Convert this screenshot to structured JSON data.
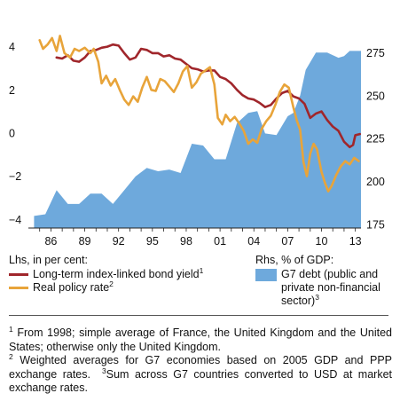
{
  "chart_data": {
    "type": "line",
    "x_ticks": [
      "86",
      "89",
      "92",
      "95",
      "98",
      "01",
      "04",
      "07",
      "10",
      "13"
    ],
    "x_range": [
      1984.5,
      2014.0
    ],
    "left_axis": {
      "ticks": [
        "4",
        "2",
        "0",
        "−2",
        "−4"
      ],
      "range": [
        -4.4,
        4.6
      ]
    },
    "right_axis": {
      "ticks": [
        "275",
        "250",
        "225",
        "200",
        "175"
      ],
      "range": [
        173,
        286
      ]
    },
    "legend_left_title": "Lhs, in per cent:",
    "legend_right_title": "Rhs, % of GDP:",
    "series": [
      {
        "name": "Long-term index-linked bond yield",
        "footnote": "1",
        "axis": "left",
        "color": "#a0262b",
        "points": [
          [
            1987.0,
            3.5
          ],
          [
            1987.5,
            3.45
          ],
          [
            1988.0,
            3.6
          ],
          [
            1988.5,
            3.35
          ],
          [
            1989.0,
            3.3
          ],
          [
            1989.5,
            3.5
          ],
          [
            1990.0,
            3.8
          ],
          [
            1990.5,
            3.85
          ],
          [
            1991.0,
            3.95
          ],
          [
            1991.5,
            4.0
          ],
          [
            1992.0,
            4.1
          ],
          [
            1992.5,
            4.05
          ],
          [
            1993.0,
            3.7
          ],
          [
            1993.5,
            3.4
          ],
          [
            1994.0,
            3.5
          ],
          [
            1994.5,
            3.9
          ],
          [
            1995.0,
            3.85
          ],
          [
            1995.5,
            3.7
          ],
          [
            1996.0,
            3.7
          ],
          [
            1996.5,
            3.55
          ],
          [
            1997.0,
            3.6
          ],
          [
            1997.5,
            3.45
          ],
          [
            1998.0,
            3.4
          ],
          [
            1998.5,
            3.2
          ],
          [
            1999.0,
            3.0
          ],
          [
            1999.5,
            2.95
          ],
          [
            2000.0,
            2.85
          ],
          [
            2000.5,
            2.9
          ],
          [
            2001.0,
            2.9
          ],
          [
            2001.5,
            2.6
          ],
          [
            2002.0,
            2.5
          ],
          [
            2002.5,
            2.3
          ],
          [
            2003.0,
            2.0
          ],
          [
            2003.5,
            1.75
          ],
          [
            2004.0,
            1.6
          ],
          [
            2004.5,
            1.55
          ],
          [
            2005.0,
            1.4
          ],
          [
            2005.5,
            1.2
          ],
          [
            2006.0,
            1.3
          ],
          [
            2006.5,
            1.6
          ],
          [
            2007.0,
            1.85
          ],
          [
            2007.5,
            1.95
          ],
          [
            2008.0,
            1.7
          ],
          [
            2008.5,
            1.6
          ],
          [
            2009.0,
            1.35
          ],
          [
            2009.5,
            0.7
          ],
          [
            2010.0,
            0.9
          ],
          [
            2010.5,
            1.0
          ],
          [
            2011.0,
            0.6
          ],
          [
            2011.5,
            0.3
          ],
          [
            2012.0,
            0.1
          ],
          [
            2012.5,
            -0.4
          ],
          [
            2013.0,
            -0.65
          ],
          [
            2013.3,
            -0.55
          ],
          [
            2013.5,
            -0.1
          ],
          [
            2013.9,
            -0.05
          ]
        ]
      },
      {
        "name": "Real policy rate",
        "footnote": "2",
        "axis": "left",
        "color": "#e8a43a",
        "points": [
          [
            1985.5,
            4.3
          ],
          [
            1985.8,
            3.9
          ],
          [
            1986.2,
            4.1
          ],
          [
            1986.6,
            4.4
          ],
          [
            1987.0,
            3.8
          ],
          [
            1987.3,
            4.5
          ],
          [
            1987.7,
            3.7
          ],
          [
            1988.2,
            3.5
          ],
          [
            1988.6,
            3.9
          ],
          [
            1989.0,
            3.8
          ],
          [
            1989.5,
            3.95
          ],
          [
            1990.0,
            3.7
          ],
          [
            1990.3,
            3.9
          ],
          [
            1990.7,
            3.3
          ],
          [
            1991.0,
            2.3
          ],
          [
            1991.4,
            2.65
          ],
          [
            1991.8,
            2.2
          ],
          [
            1992.2,
            2.5
          ],
          [
            1992.6,
            2.0
          ],
          [
            1993.0,
            1.55
          ],
          [
            1993.4,
            1.3
          ],
          [
            1993.8,
            1.7
          ],
          [
            1994.2,
            1.45
          ],
          [
            1994.6,
            2.1
          ],
          [
            1995.0,
            2.6
          ],
          [
            1995.4,
            2.0
          ],
          [
            1995.8,
            1.95
          ],
          [
            1996.2,
            2.5
          ],
          [
            1996.6,
            2.4
          ],
          [
            1997.0,
            2.15
          ],
          [
            1997.4,
            1.9
          ],
          [
            1997.8,
            2.3
          ],
          [
            1998.2,
            2.85
          ],
          [
            1998.6,
            3.1
          ],
          [
            1999.0,
            2.1
          ],
          [
            1999.4,
            2.35
          ],
          [
            1999.8,
            2.75
          ],
          [
            2000.2,
            2.9
          ],
          [
            2000.6,
            3.05
          ],
          [
            2001.0,
            2.25
          ],
          [
            2001.3,
            0.7
          ],
          [
            2001.7,
            0.4
          ],
          [
            2002.0,
            0.85
          ],
          [
            2002.4,
            0.55
          ],
          [
            2002.8,
            0.75
          ],
          [
            2003.2,
            0.45
          ],
          [
            2003.6,
            0.1
          ],
          [
            2004.0,
            -0.5
          ],
          [
            2004.4,
            -0.3
          ],
          [
            2004.8,
            -0.45
          ],
          [
            2005.2,
            0.2
          ],
          [
            2005.6,
            0.55
          ],
          [
            2006.0,
            0.8
          ],
          [
            2006.4,
            1.3
          ],
          [
            2006.8,
            1.9
          ],
          [
            2007.2,
            2.25
          ],
          [
            2007.6,
            2.1
          ],
          [
            2008.0,
            1.2
          ],
          [
            2008.3,
            0.6
          ],
          [
            2008.6,
            0.15
          ],
          [
            2008.9,
            -1.35
          ],
          [
            2009.2,
            -2.0
          ],
          [
            2009.5,
            -0.95
          ],
          [
            2009.8,
            -0.5
          ],
          [
            2010.1,
            -0.75
          ],
          [
            2010.5,
            -1.8
          ],
          [
            2010.8,
            -2.3
          ],
          [
            2011.1,
            -2.7
          ],
          [
            2011.4,
            -2.45
          ],
          [
            2011.8,
            -1.95
          ],
          [
            2012.2,
            -1.55
          ],
          [
            2012.6,
            -1.3
          ],
          [
            2013.0,
            -1.45
          ],
          [
            2013.4,
            -1.15
          ],
          [
            2013.8,
            -1.3
          ]
        ]
      }
    ],
    "area": {
      "name": "G7 debt (public and private non-financial sector)",
      "footnote": "3",
      "axis": "right",
      "color": "#6ea9dc",
      "points": [
        [
          1985.0,
          180
        ],
        [
          1986.0,
          181
        ],
        [
          1987.0,
          195
        ],
        [
          1988.0,
          187
        ],
        [
          1989.0,
          187
        ],
        [
          1990.0,
          193
        ],
        [
          1991.0,
          193
        ],
        [
          1992.0,
          187
        ],
        [
          1993.0,
          195
        ],
        [
          1994.0,
          203
        ],
        [
          1995.0,
          208
        ],
        [
          1996.0,
          206
        ],
        [
          1997.0,
          207
        ],
        [
          1998.0,
          205
        ],
        [
          1999.0,
          222
        ],
        [
          2000.0,
          221
        ],
        [
          2001.0,
          213
        ],
        [
          2002.0,
          213
        ],
        [
          2003.0,
          234
        ],
        [
          2004.0,
          240
        ],
        [
          2004.8,
          241
        ],
        [
          2005.5,
          228
        ],
        [
          2006.5,
          227
        ],
        [
          2007.5,
          238
        ],
        [
          2008.0,
          240
        ],
        [
          2008.6,
          250
        ],
        [
          2009.1,
          265
        ],
        [
          2010.0,
          275
        ],
        [
          2011.0,
          275
        ],
        [
          2012.0,
          272
        ],
        [
          2012.5,
          273
        ],
        [
          2013.0,
          276
        ],
        [
          2014.0,
          276
        ]
      ]
    }
  },
  "footnotes": {
    "n1_mark": "1",
    "n1": "From 1998; simple average of France, the United Kingdom and the United States; otherwise only the United Kingdom.",
    "n2_mark": "2",
    "n2": "Weighted averages for G7 economies based on 2005 GDP and PPP exchange rates.",
    "n3_mark": "3",
    "n3": "Sum across G7 countries converted to USD at market exchange rates."
  }
}
